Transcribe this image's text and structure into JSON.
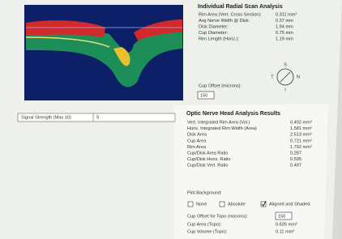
{
  "radial_scan": {
    "title": "Individual Radial Scan Analysis",
    "rows": [
      {
        "label": "Rim Area (Vert. Cross Section):",
        "value": "0.311 mm²"
      },
      {
        "label": "Avg Nerve Width @ Disk:",
        "value": "0.37 mm"
      },
      {
        "label": "Disk Diameter:",
        "value": "1.94 mm"
      },
      {
        "label": "Cup Diameter:",
        "value": "0.75 mm"
      },
      {
        "label": "Rim Length (Horiz.):",
        "value": "1.19 mm"
      }
    ],
    "cup_offset": {
      "label": "Cup Offset (microns):",
      "value": "150"
    },
    "compass": [
      "S",
      "T",
      "N",
      "I"
    ]
  },
  "signal_strength": {
    "label": "Signal Strength (Max 10)",
    "value": "9"
  },
  "onh_results": {
    "title": "Optic Nerve Head Analysis Results",
    "rows": [
      {
        "label": "Vert. Integrated Rim Area (Vol.)",
        "value": "0.492 mm³"
      },
      {
        "label": "Horiz. Integrated Rim Width (Area)",
        "value": "1.581 mm²"
      },
      {
        "label": "Disk Area",
        "value": "2.513 mm²"
      },
      {
        "label": "Cup Area",
        "value": "0.721 mm²"
      },
      {
        "label": "Rim Area",
        "value": "1.792 mm²"
      },
      {
        "label": "Cup/Disk Area Ratio",
        "value": "0.287"
      },
      {
        "label": "Cup/Disk Horiz. Ratio",
        "value": "0.595"
      },
      {
        "label": "Cup/Disk Vert. Ratio",
        "value": "0.497"
      }
    ]
  },
  "plot_background": {
    "label": "Plot Background:",
    "options": [
      "None",
      "Absolute",
      "Aligned and Shaded"
    ]
  },
  "topo": {
    "cup_offset": {
      "label": "Cup Offset for Topo (microns):",
      "value": "150"
    },
    "rows": [
      {
        "label": "Cup Area (Topo):",
        "value": "0.626 mm²"
      },
      {
        "label": "Cup Volume (Topo):",
        "value": "0.11 mm³"
      }
    ]
  }
}
